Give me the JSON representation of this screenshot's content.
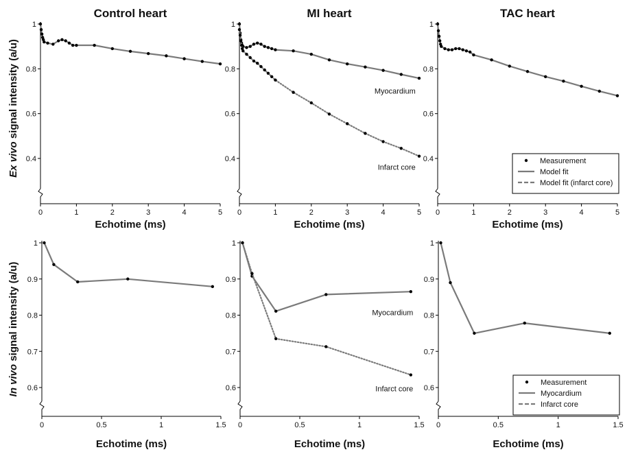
{
  "figure": {
    "row_labels": {
      "top": {
        "italic": "Ex vivo",
        "rest": " signal intensity (a/u)"
      },
      "bottom": {
        "italic": "In vivo",
        "rest": " signal intensity (a/u)"
      }
    }
  },
  "chart_data": [
    {
      "type": "line",
      "title": "Control heart",
      "xlabel": "Echotime (ms)",
      "ylabel": "Ex vivo signal intensity (a/u)",
      "xlim": [
        0,
        5
      ],
      "ylim": [
        0.4,
        1
      ],
      "xticks": [
        0,
        1,
        2,
        3,
        4,
        5
      ],
      "yticks": [
        0.4,
        0.6,
        0.8,
        1
      ],
      "series": [
        {
          "style": "solid",
          "x": [
            0,
            0.02,
            0.04,
            0.06,
            0.08,
            0.1,
            0.2,
            0.35,
            0.5,
            0.6,
            0.7,
            0.8,
            0.9,
            1.0,
            1.5,
            2.0,
            2.5,
            3.0,
            3.5,
            4.0,
            4.5,
            5.0
          ],
          "y": [
            1.0,
            0.975,
            0.955,
            0.94,
            0.93,
            0.92,
            0.915,
            0.91,
            0.925,
            0.93,
            0.925,
            0.915,
            0.905,
            0.905,
            0.905,
            0.89,
            0.878,
            0.868,
            0.858,
            0.845,
            0.833,
            0.822
          ]
        },
        {
          "style": "points",
          "x": [
            0,
            0.02,
            0.04,
            0.06,
            0.08,
            0.1,
            0.2,
            0.35,
            0.5,
            0.6,
            0.7,
            0.8,
            0.9,
            1.0,
            1.5,
            2.0,
            2.5,
            3.0,
            3.5,
            4.0,
            4.5,
            5.0
          ],
          "y": [
            1.0,
            0.975,
            0.955,
            0.94,
            0.93,
            0.92,
            0.915,
            0.91,
            0.925,
            0.93,
            0.925,
            0.915,
            0.905,
            0.905,
            0.905,
            0.89,
            0.878,
            0.868,
            0.858,
            0.845,
            0.833,
            0.822
          ]
        }
      ],
      "annotations": []
    },
    {
      "type": "line",
      "title": "MI heart",
      "xlabel": "Echotime (ms)",
      "xlim": [
        0,
        5
      ],
      "ylim": [
        0.4,
        1
      ],
      "xticks": [
        0,
        1,
        2,
        3,
        4,
        5
      ],
      "yticks": [
        0.4,
        0.6,
        0.8,
        1
      ],
      "series": [
        {
          "style": "solid",
          "x": [
            0,
            0.02,
            0.04,
            0.06,
            0.08,
            0.1,
            0.2,
            0.3,
            0.4,
            0.5,
            0.6,
            0.7,
            0.8,
            0.9,
            1.0,
            1.5,
            2.0,
            2.5,
            3.0,
            3.5,
            4.0,
            4.5,
            5.0
          ],
          "y": [
            1.0,
            0.96,
            0.93,
            0.915,
            0.905,
            0.9,
            0.895,
            0.9,
            0.91,
            0.915,
            0.91,
            0.9,
            0.895,
            0.89,
            0.885,
            0.88,
            0.865,
            0.84,
            0.822,
            0.808,
            0.793,
            0.775,
            0.758
          ]
        },
        {
          "style": "points",
          "x": [
            0,
            0.02,
            0.04,
            0.06,
            0.08,
            0.1,
            0.2,
            0.3,
            0.4,
            0.5,
            0.6,
            0.7,
            0.8,
            0.9,
            1.0,
            1.5,
            2.0,
            2.5,
            3.0,
            3.5,
            4.0,
            4.5,
            5.0
          ],
          "y": [
            1.0,
            0.96,
            0.93,
            0.915,
            0.905,
            0.9,
            0.895,
            0.9,
            0.91,
            0.915,
            0.91,
            0.9,
            0.895,
            0.89,
            0.885,
            0.88,
            0.865,
            0.84,
            0.822,
            0.808,
            0.793,
            0.775,
            0.758
          ]
        },
        {
          "style": "dotted",
          "x": [
            0,
            0.02,
            0.04,
            0.06,
            0.08,
            0.1,
            0.2,
            0.3,
            0.4,
            0.5,
            0.6,
            0.7,
            0.8,
            0.9,
            1.0,
            1.5,
            2.0,
            2.5,
            3.0,
            3.5,
            4.0,
            4.5,
            5.0
          ],
          "y": [
            0.975,
            0.95,
            0.925,
            0.905,
            0.89,
            0.88,
            0.865,
            0.85,
            0.835,
            0.825,
            0.81,
            0.795,
            0.78,
            0.765,
            0.75,
            0.695,
            0.648,
            0.598,
            0.555,
            0.512,
            0.475,
            0.445,
            0.41
          ]
        },
        {
          "style": "points",
          "x": [
            0,
            0.02,
            0.04,
            0.06,
            0.08,
            0.1,
            0.2,
            0.3,
            0.4,
            0.5,
            0.6,
            0.7,
            0.8,
            0.9,
            1.0,
            1.5,
            2.0,
            2.5,
            3.0,
            3.5,
            4.0,
            4.5,
            5.0
          ],
          "y": [
            0.975,
            0.95,
            0.925,
            0.905,
            0.89,
            0.88,
            0.865,
            0.85,
            0.835,
            0.825,
            0.81,
            0.795,
            0.78,
            0.765,
            0.75,
            0.695,
            0.648,
            0.598,
            0.555,
            0.512,
            0.475,
            0.445,
            0.41
          ]
        }
      ],
      "annotations": [
        {
          "text": "Myocardium",
          "x": 4.9,
          "y": 0.69
        },
        {
          "text": "Infarct core",
          "x": 4.9,
          "y": 0.35
        }
      ]
    },
    {
      "type": "line",
      "title": "TAC heart",
      "xlabel": "Echotime (ms)",
      "xlim": [
        0,
        5
      ],
      "ylim": [
        0.4,
        1
      ],
      "xticks": [
        0,
        1,
        2,
        3,
        4,
        5
      ],
      "yticks": [
        0.4,
        0.6,
        0.8,
        1
      ],
      "series": [
        {
          "style": "solid",
          "x": [
            0,
            0.02,
            0.04,
            0.06,
            0.08,
            0.1,
            0.2,
            0.3,
            0.4,
            0.5,
            0.6,
            0.7,
            0.8,
            0.9,
            1.0,
            1.5,
            2.0,
            2.5,
            3.0,
            3.5,
            4.0,
            4.5,
            5.0
          ],
          "y": [
            1.0,
            0.97,
            0.945,
            0.925,
            0.91,
            0.9,
            0.89,
            0.885,
            0.885,
            0.89,
            0.89,
            0.885,
            0.88,
            0.875,
            0.862,
            0.84,
            0.812,
            0.788,
            0.765,
            0.745,
            0.722,
            0.7,
            0.68
          ]
        },
        {
          "style": "points",
          "x": [
            0,
            0.02,
            0.04,
            0.06,
            0.08,
            0.1,
            0.2,
            0.3,
            0.4,
            0.5,
            0.6,
            0.7,
            0.8,
            0.9,
            1.0,
            1.5,
            2.0,
            2.5,
            3.0,
            3.5,
            4.0,
            4.5,
            5.0
          ],
          "y": [
            1.0,
            0.97,
            0.945,
            0.925,
            0.91,
            0.9,
            0.89,
            0.885,
            0.885,
            0.89,
            0.89,
            0.885,
            0.88,
            0.875,
            0.862,
            0.84,
            0.812,
            0.788,
            0.765,
            0.745,
            0.722,
            0.7,
            0.68
          ]
        }
      ],
      "annotations": [],
      "legend": {
        "placement": "bottom-right",
        "entries": [
          {
            "marker": "dot",
            "label": "Measurement"
          },
          {
            "marker": "solid",
            "label": "Model fit"
          },
          {
            "marker": "dashed",
            "label": "Model fit (infarct core)"
          }
        ]
      }
    },
    {
      "type": "line",
      "title": "Control heart",
      "xlabel": "Echotime (ms)",
      "ylabel": "In vivo signal intensity (a/u)",
      "xlim": [
        0,
        1.5
      ],
      "ylim": [
        0.6,
        1
      ],
      "xticks": [
        0,
        0.5,
        1,
        1.5
      ],
      "yticks": [
        0.6,
        0.7,
        0.8,
        0.9,
        1
      ],
      "series": [
        {
          "style": "solid",
          "x": [
            0.02,
            0.1,
            0.3,
            0.72,
            1.43
          ],
          "y": [
            1.0,
            0.94,
            0.892,
            0.9,
            0.879
          ]
        },
        {
          "style": "points",
          "x": [
            0.02,
            0.1,
            0.3,
            0.72,
            1.43
          ],
          "y": [
            1.0,
            0.94,
            0.892,
            0.9,
            0.879
          ]
        }
      ],
      "annotations": []
    },
    {
      "type": "line",
      "title": "MI heart",
      "xlabel": "Echotime (ms)",
      "xlim": [
        0,
        1.5
      ],
      "ylim": [
        0.6,
        1
      ],
      "xticks": [
        0,
        0.5,
        1,
        1.5
      ],
      "yticks": [
        0.6,
        0.7,
        0.8,
        0.9,
        1
      ],
      "series": [
        {
          "style": "solid",
          "x": [
            0.02,
            0.1,
            0.3,
            0.72,
            1.43
          ],
          "y": [
            1.0,
            0.908,
            0.811,
            0.857,
            0.865
          ]
        },
        {
          "style": "points",
          "x": [
            0.02,
            0.1,
            0.3,
            0.72,
            1.43
          ],
          "y": [
            1.0,
            0.908,
            0.811,
            0.857,
            0.865
          ]
        },
        {
          "style": "dotted",
          "x": [
            0.02,
            0.1,
            0.3,
            0.72,
            1.43
          ],
          "y": [
            1.0,
            0.915,
            0.735,
            0.713,
            0.635
          ]
        },
        {
          "style": "points",
          "x": [
            0.02,
            0.1,
            0.3,
            0.72,
            1.43
          ],
          "y": [
            1.0,
            0.915,
            0.735,
            0.713,
            0.635
          ]
        }
      ],
      "annotations": [
        {
          "text": "Myocardium",
          "x": 1.45,
          "y": 0.8
        },
        {
          "text": "Infarct core",
          "x": 1.45,
          "y": 0.59
        }
      ]
    },
    {
      "type": "line",
      "title": "TAC heart",
      "xlabel": "Echotime (ms)",
      "xlim": [
        0,
        1.5
      ],
      "ylim": [
        0.6,
        1
      ],
      "xticks": [
        0,
        0.5,
        1,
        1.5
      ],
      "yticks": [
        0.6,
        0.7,
        0.8,
        0.9,
        1
      ],
      "series": [
        {
          "style": "solid",
          "x": [
            0.02,
            0.1,
            0.3,
            0.72,
            1.43
          ],
          "y": [
            1.0,
            0.89,
            0.75,
            0.778,
            0.75
          ]
        },
        {
          "style": "points",
          "x": [
            0.02,
            0.1,
            0.3,
            0.72,
            1.43
          ],
          "y": [
            1.0,
            0.89,
            0.75,
            0.778,
            0.75
          ]
        }
      ],
      "annotations": [],
      "legend": {
        "placement": "bottom-right",
        "entries": [
          {
            "marker": "dot",
            "label": "Measurement"
          },
          {
            "marker": "solid",
            "label": "Myocardium"
          },
          {
            "marker": "dashed",
            "label": "Infarct core"
          }
        ]
      }
    }
  ]
}
